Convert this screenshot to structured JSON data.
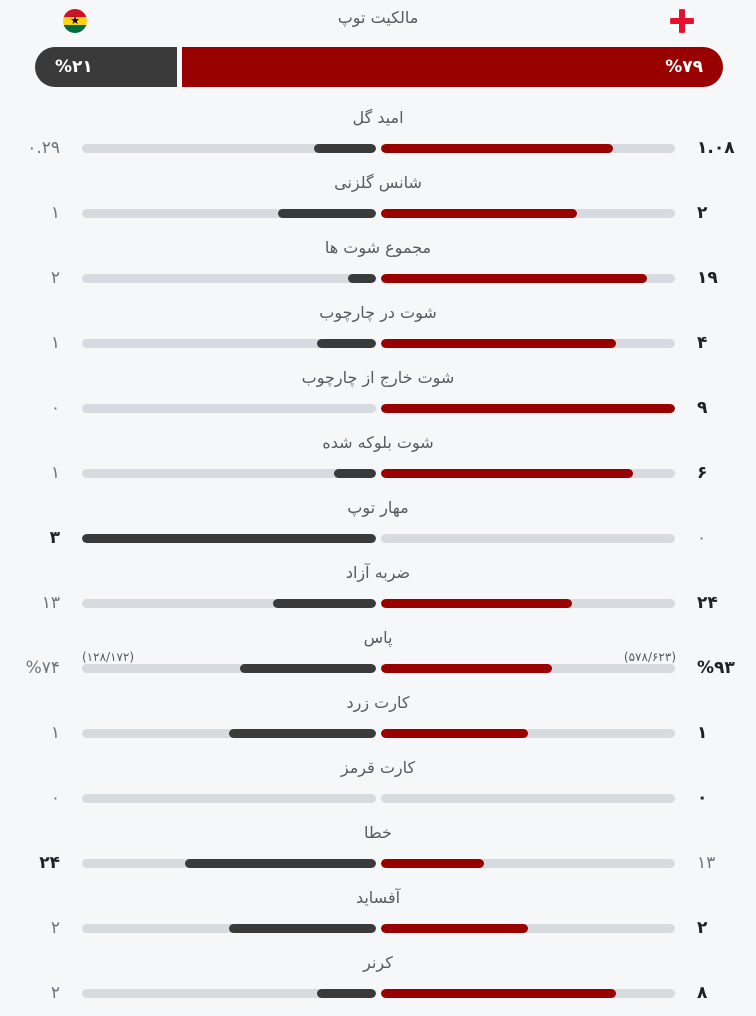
{
  "possession": {
    "title": "مالکیت توپ",
    "home_label": "%۷۹",
    "away_label": "%۲۱",
    "home_value": 79,
    "away_value": 21,
    "home_color": "#990000",
    "away_color": "#3a3a3a"
  },
  "teams": {
    "home_flag_icon": "england-flag-icon",
    "away_flag_icon": "ghana-flag-icon"
  },
  "stats": [
    {
      "label": "امید گل",
      "home": "۱.۰۸",
      "away": "۰.۲۹",
      "home_num": 1.08,
      "away_num": 0.29
    },
    {
      "label": "شانس گلزنی",
      "home": "۲",
      "away": "۱",
      "home_num": 2,
      "away_num": 1
    },
    {
      "label": "مجموع شوت ها",
      "home": "۱۹",
      "away": "۲",
      "home_num": 19,
      "away_num": 2
    },
    {
      "label": "شوت در چارچوب",
      "home": "۴",
      "away": "۱",
      "home_num": 4,
      "away_num": 1
    },
    {
      "label": "شوت خارج از چارچوب",
      "home": "۹",
      "away": "۰",
      "home_num": 9,
      "away_num": 0
    },
    {
      "label": "شوت بلوکه شده",
      "home": "۶",
      "away": "۱",
      "home_num": 6,
      "away_num": 1
    },
    {
      "label": "مهار توپ",
      "home": "۰",
      "away": "۳",
      "home_num": 0,
      "away_num": 3
    },
    {
      "label": "ضربه آزاد",
      "home": "۲۴",
      "away": "۱۳",
      "home_num": 24,
      "away_num": 13
    },
    {
      "label": "پاس",
      "home": "%۹۳",
      "away": "%۷۴",
      "home_num": 93,
      "away_num": 74,
      "home_sub": "(۵۷۸/۶۲۳)",
      "away_sub": "(۱۲۸/۱۷۲)"
    },
    {
      "label": "کارت زرد",
      "home": "۱",
      "away": "۱",
      "home_num": 1,
      "away_num": 1
    },
    {
      "label": "کارت قرمز",
      "home": "۰",
      "away": "۰",
      "home_num": 0,
      "away_num": 0
    },
    {
      "label": "خطا",
      "home": "۱۳",
      "away": "۲۴",
      "home_num": 13,
      "away_num": 24
    },
    {
      "label": "آفساید",
      "home": "۲",
      "away": "۲",
      "home_num": 2,
      "away_num": 2
    },
    {
      "label": "کرنر",
      "home": "۸",
      "away": "۲",
      "home_num": 8,
      "away_num": 2
    }
  ]
}
